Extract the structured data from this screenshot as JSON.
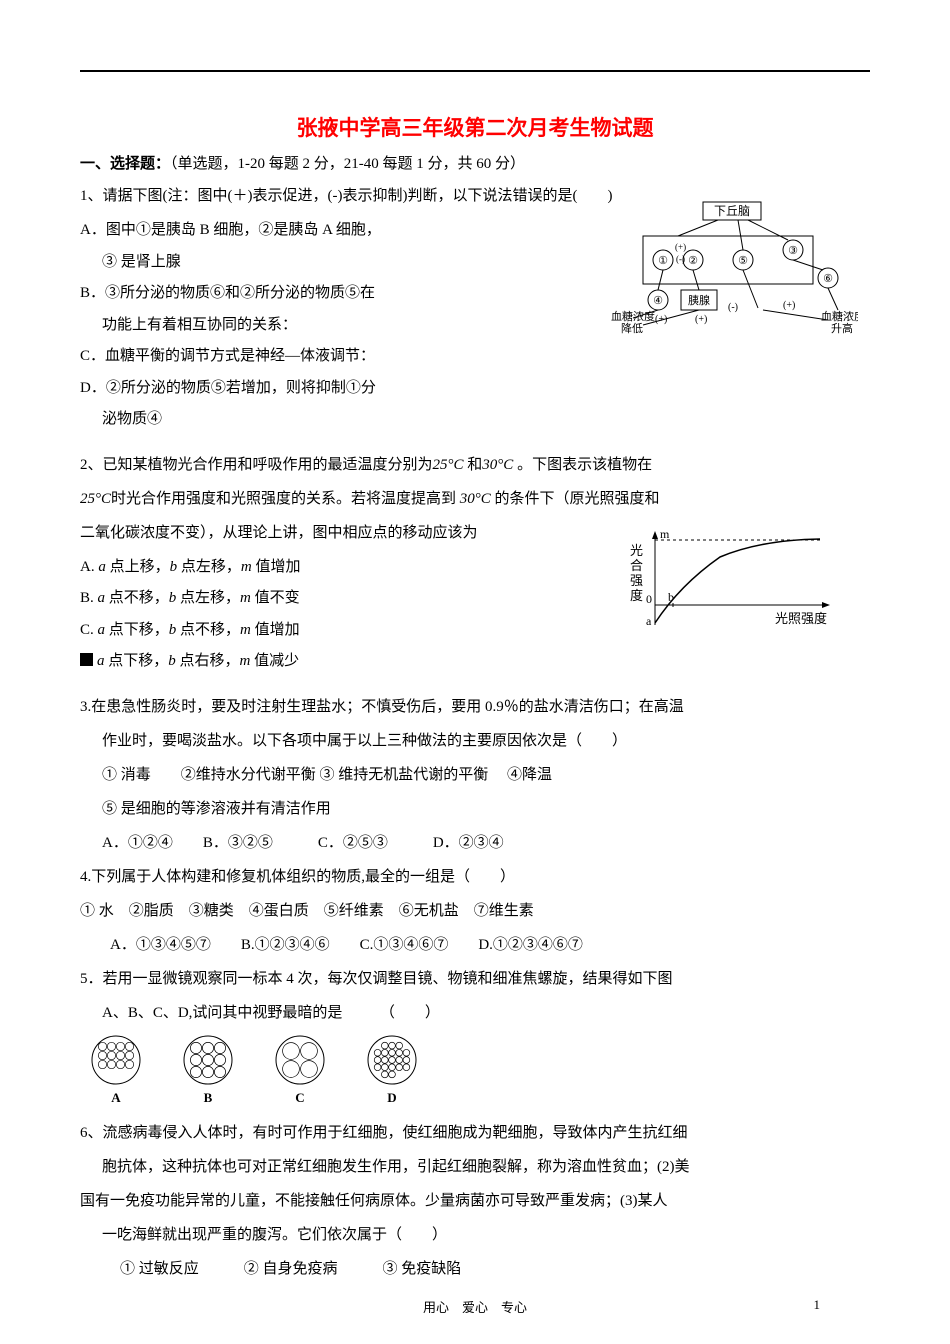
{
  "title": "张掖中学高三年级第二次月考生物试题",
  "section_head_bold": "一、选择题：",
  "section_head_rest": "（单选题，1-20 每题 2 分，21-40 每题 1 分，共 60 分）",
  "q1": {
    "stem": "1、请据下图(注：图中(＋)表示促进，(-)表示抑制)判断，以下说法错误的是(　　)",
    "a1": "A．图中①是胰岛 B 细胞，②是胰岛 A 细胞，",
    "a1b": "③ 是肾上腺",
    "b1": "B．③所分泌的物质⑥和②所分泌的物质⑤在",
    "b1b": "功能上有着相互协同的关系：",
    "c": "C．血糖平衡的调节方式是神经—体液调节：",
    "d1": "D．②所分泌的物质⑤若增加，则将抑制①分",
    "d1b": "泌物质④"
  },
  "q2": {
    "stem1": "2、已知某植物光合作用和呼吸作用的最适温度分别为",
    "t25": "25°C",
    "mid1": "和",
    "t30": "30°C",
    "mid2": "。下图表示该植物在",
    "stem2a": "25°C",
    "stem2b": "时光合作用强度和光照强度的关系。若将温度提高到",
    "stem2c": "30°C",
    "stem2d": "的条件下（原光照强度和",
    "stem3": "二氧化碳浓度不变），从理论上讲，图中相应点的移动应该为",
    "a": "点上移，",
    "a2": "点左移，",
    "a3": "值增加",
    "b": "点不移，",
    "b2": "点左移，",
    "b3": "值不变",
    "c": "点下移，",
    "c2": "点不移，",
    "c3": "值增加",
    "d": "点下移，",
    "d2": "点右移，",
    "d3": "值减少",
    "var_a": "a",
    "var_b": "b",
    "var_m": "m",
    "lblA": "A.",
    "lblB": "B.",
    "lblC": "C."
  },
  "q3": {
    "stem1": "3.在患急性肠炎时，要及时注射生理盐水；不慎受伤后，要用 0.9％的盐水清洁伤口；在高温",
    "stem2": "作业时，要喝淡盐水。以下各项中属于以上三种做法的主要原因依次是（　　）",
    "line_opts1": "① 消毒　　②维持水分代谢平衡 ③ 维持无机盐代谢的平衡 　④降温",
    "line_opts2": "⑤ 是细胞的等渗溶液并有清洁作用",
    "choices": "A．①②④　　B．③②⑤　　　C．②⑤③　　　D．②③④"
  },
  "q4": {
    "stem": "4.下列属于人体构建和修复机体组织的物质,最全的一组是（　　）",
    "line1": "① 水　②脂质　③糖类　④蛋白质　⑤纤维素　⑥无机盐　⑦维生素",
    "choices": "A．①③④⑤⑦　　B.①②③④⑥　　C.①③④⑥⑦　　D.①②③④⑥⑦"
  },
  "q5": {
    "stem1": "5．若用一显微镜观察同一标本 4 次，每次仅调整目镜、物镜和细准焦螺旋，结果得如下图",
    "stem2": "A、B、C、D,试问其中视野最暗的是　　　（　　）"
  },
  "q6": {
    "l1": "6、流感病毒侵入人体时，有时可作用于红细胞，使红细胞成为靶细胞，导致体内产生抗红细",
    "l2": "胞抗体，这种抗体也可对正常红细胞发生作用，引起红细胞裂解，称为溶血性贫血；(2)美",
    "l3": "国有一免疫功能异常的儿童，不能接触任何病原体。少量病菌亦可导致严重发病；(3)某人",
    "l4": "一吃海鲜就出现严重的腹泻。它们依次属于（　　）",
    "opts": "① 过敏反应　　　② 自身免疫病　　　③ 免疫缺陷"
  },
  "chart1": {
    "labels": {
      "top": "下丘脑",
      "panc": "胰腺",
      "left": "血糖浓度\n降低",
      "right": "血糖浓度\n升高",
      "c1": "①",
      "c2": "②",
      "c3": "③",
      "c4": "④",
      "c5": "⑤",
      "c6": "⑥",
      "plus": "(+)",
      "minus": "(-)"
    },
    "colors": {
      "line": "#000000",
      "bg": "#ffffff"
    }
  },
  "chart2": {
    "labels": {
      "ylabel": "光合强度",
      "xlabel": "光照强度",
      "m": "m",
      "a": "a",
      "b": "b",
      "zero": "0"
    },
    "colors": {
      "line": "#000000"
    }
  },
  "cells": {
    "labels": [
      "A",
      "B",
      "C",
      "D"
    ],
    "counts": [
      12,
      9,
      4,
      20
    ],
    "radius": 24
  },
  "footer": {
    "text": "用心　爱心　专心",
    "page": "1"
  }
}
